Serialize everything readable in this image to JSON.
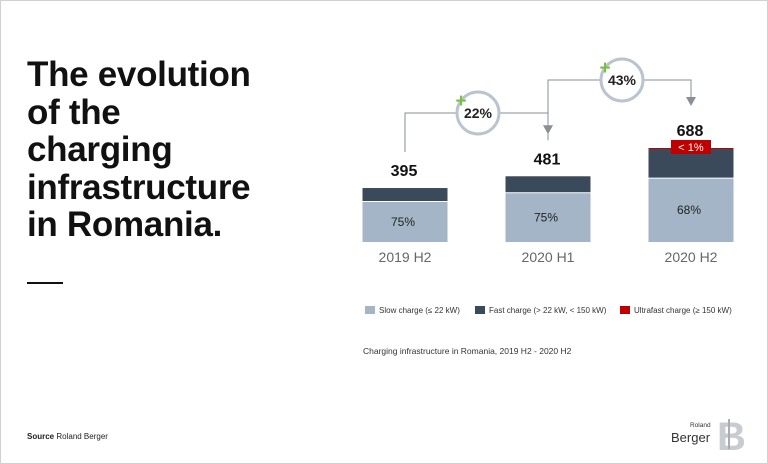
{
  "title_lines": [
    "The evolution",
    "of the",
    "charging",
    "infrastructure",
    "in Romania."
  ],
  "caption": "Charging infrastructure in Romania, 2019 H2 - 2020 H2",
  "source": {
    "label": "Source",
    "value": "Roland Berger"
  },
  "logo": {
    "small": "Roland",
    "big": "Berger",
    "mark": "B"
  },
  "colors": {
    "slow": "#a3b5c6",
    "fast": "#3a4a5a",
    "ultra": "#c00000",
    "plus": "#78c043",
    "growth_circle": "#b9c4cf",
    "connector": "#8a8f95"
  },
  "chart_data": {
    "type": "bar",
    "categories": [
      "2019 H2",
      "2020 H1",
      "2020 H2"
    ],
    "totals": [
      395,
      481,
      688
    ],
    "series": [
      {
        "name": "Slow charge (≤ 22 kW)",
        "key": "slow",
        "percent_labels": [
          "75%",
          "75%",
          "68%"
        ],
        "values": [
          75,
          75,
          68
        ]
      },
      {
        "name": "Fast charge (> 22 kW, < 150 kW)",
        "key": "fast",
        "values": [
          25,
          25,
          31.5
        ]
      },
      {
        "name": "Ultrafast charge (≥ 150 kW)",
        "key": "ultra",
        "labels": [
          "",
          "",
          "< 1%"
        ],
        "values": [
          0,
          0,
          0.5
        ]
      }
    ],
    "growth": [
      {
        "from": "2019 H2",
        "to": "2020 H1",
        "sign": "+",
        "label": "22%"
      },
      {
        "from": "2020 H1",
        "to": "2020 H2",
        "sign": "+",
        "label": "43%"
      }
    ]
  }
}
